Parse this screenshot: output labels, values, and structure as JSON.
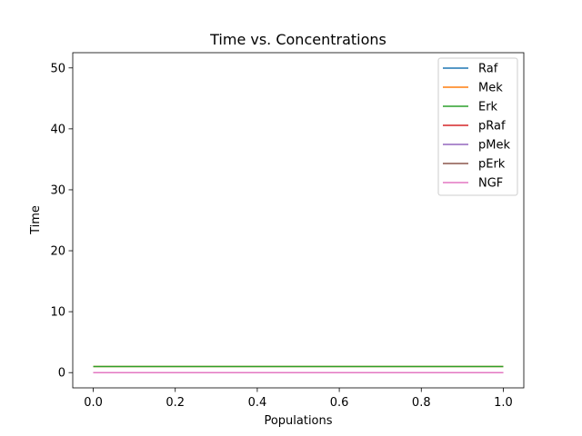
{
  "chart_data": {
    "type": "line",
    "title": "Time vs. Concentrations",
    "xlabel": "Populations",
    "ylabel": "Time",
    "xlim": [
      -0.05,
      1.05
    ],
    "ylim": [
      -2.5,
      52.5
    ],
    "xticks": [
      0.0,
      0.2,
      0.4,
      0.6,
      0.8,
      1.0
    ],
    "xtick_labels": [
      "0.0",
      "0.2",
      "0.4",
      "0.6",
      "0.8",
      "1.0"
    ],
    "yticks": [
      0,
      10,
      20,
      30,
      40,
      50
    ],
    "ytick_labels": [
      "0",
      "10",
      "20",
      "30",
      "40",
      "50"
    ],
    "grid": false,
    "legend_position": "top-right",
    "x": [
      0.0,
      1.0
    ],
    "series": [
      {
        "name": "Raf",
        "color": "#1f77b4",
        "values": [
          0,
          0
        ]
      },
      {
        "name": "Mek",
        "color": "#ff7f0e",
        "values": [
          1,
          1
        ]
      },
      {
        "name": "Erk",
        "color": "#2ca02c",
        "values": [
          1,
          1
        ]
      },
      {
        "name": "pRaf",
        "color": "#d62728",
        "values": [
          0,
          0
        ]
      },
      {
        "name": "pMek",
        "color": "#9467bd",
        "values": [
          0,
          0
        ]
      },
      {
        "name": "pErk",
        "color": "#8c564b",
        "values": [
          0,
          0
        ]
      },
      {
        "name": "NGF",
        "color": "#e377c2",
        "values": [
          0,
          0
        ]
      }
    ]
  }
}
